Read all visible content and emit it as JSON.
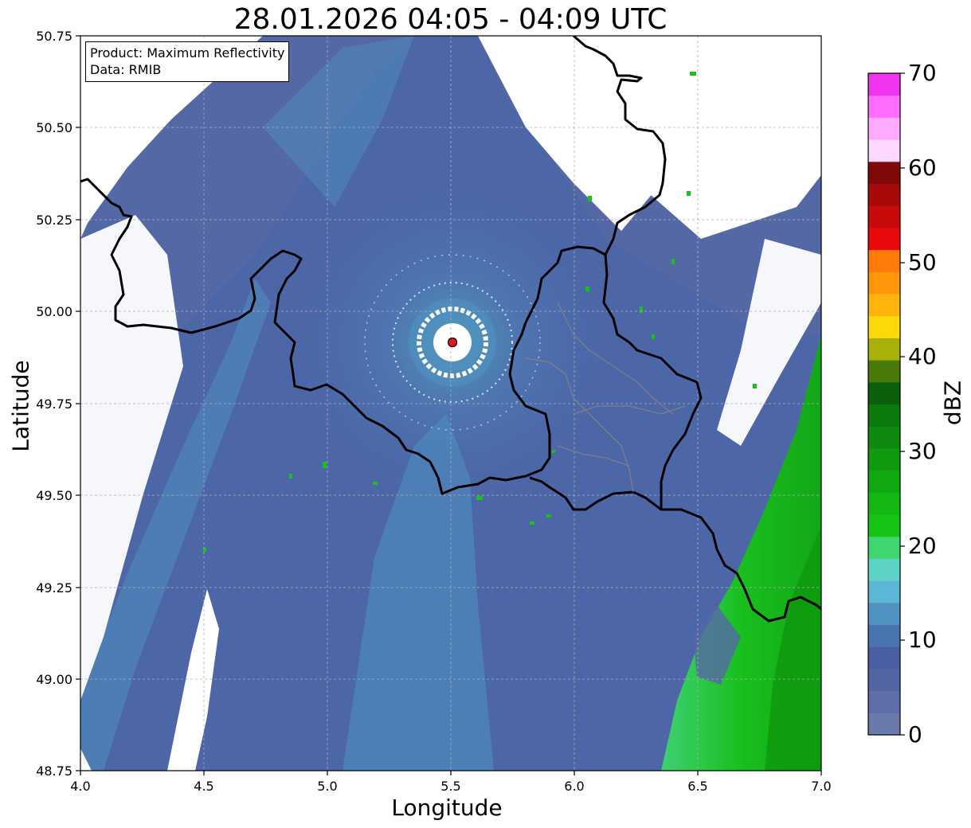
{
  "title": "28.01.2026 04:05 - 04:09 UTC",
  "xlabel": "Longitude",
  "ylabel": "Latitude",
  "info": {
    "product": "Product: Maximum Reflectivity",
    "data": "Data: RMIB"
  },
  "map": {
    "lon_range": [
      4.0,
      7.0
    ],
    "lat_range": [
      48.75,
      50.75
    ],
    "lon_ticks": [
      "4.0",
      "4.5",
      "5.0",
      "5.5",
      "6.0",
      "6.5",
      "7.0"
    ],
    "lat_ticks": [
      "50.75",
      "50.50",
      "50.25",
      "50.00",
      "49.75",
      "49.50",
      "49.25",
      "49.00",
      "48.75"
    ],
    "grid": true,
    "radar_site": {
      "lon": 5.505,
      "lat": 49.915,
      "color": "#e8141b"
    }
  },
  "colorbar": {
    "label": "dBZ",
    "ticks": [
      "0",
      "10",
      "20",
      "30",
      "40",
      "50",
      "60",
      "70"
    ],
    "range": [
      0,
      70
    ],
    "colors": [
      "#6a7bab",
      "#5d6ea8",
      "#5266a5",
      "#4a5fa3",
      "#4a74b0",
      "#4f93c2",
      "#5cb7d6",
      "#5cd3c5",
      "#3ed66f",
      "#16c416",
      "#13b813",
      "#10a911",
      "#0f9a10",
      "#0e8a0e",
      "#0a7a0a",
      "#0a5f0a",
      "#4a7a0a",
      "#a8b00a",
      "#fed90a",
      "#feb40a",
      "#fe960a",
      "#fe7a0a",
      "#e80a0a",
      "#c80a0a",
      "#a80a0a",
      "#800a0a",
      "#ffd8ff",
      "#ffaaff",
      "#ff6cff",
      "#ee34ee"
    ]
  }
}
